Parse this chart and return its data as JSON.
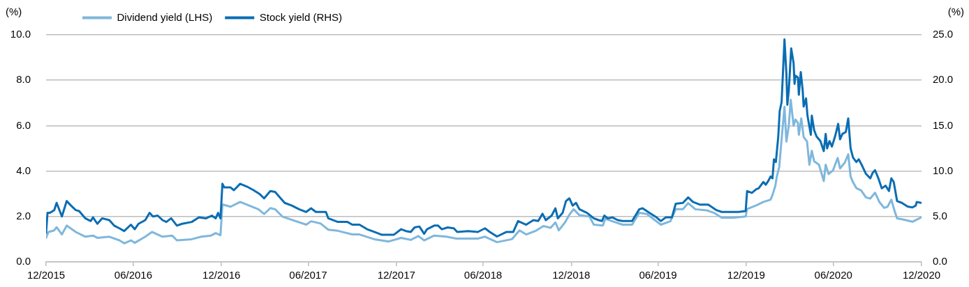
{
  "chart_data": {
    "type": "line",
    "ylabel": "(%)",
    "y2label": "(%)",
    "xlim": [
      "2015-12-31",
      "2020-12-31"
    ],
    "xticks": [
      {
        "value": "2015-12-31",
        "label": "12/2015"
      },
      {
        "value": "2016-06-30",
        "label": "06/2016"
      },
      {
        "value": "2016-12-31",
        "label": "12/2016"
      },
      {
        "value": "2017-06-30",
        "label": "06/2017"
      },
      {
        "value": "2017-12-31",
        "label": "12/2017"
      },
      {
        "value": "2018-06-30",
        "label": "06/2018"
      },
      {
        "value": "2018-12-31",
        "label": "12/2018"
      },
      {
        "value": "2019-06-30",
        "label": "06/2019"
      },
      {
        "value": "2019-12-31",
        "label": "12/2019"
      },
      {
        "value": "2020-06-30",
        "label": "06/2020"
      },
      {
        "value": "2020-12-31",
        "label": "12/2020"
      }
    ],
    "ylim": [
      0,
      10
    ],
    "yticks": [
      {
        "value": 0,
        "label": "0.0"
      },
      {
        "value": 2,
        "label": "2.0"
      },
      {
        "value": 4,
        "label": "4.0"
      },
      {
        "value": 6,
        "label": "6.0"
      },
      {
        "value": 8,
        "label": "8.0"
      },
      {
        "value": 10,
        "label": "10.0"
      }
    ],
    "y2lim": [
      0,
      25
    ],
    "y2ticks": [
      {
        "value": 0,
        "label": "0.0"
      },
      {
        "value": 5,
        "label": "5.0"
      },
      {
        "value": 10,
        "label": "10.0"
      },
      {
        "value": 15,
        "label": "15.0"
      },
      {
        "value": 20,
        "label": "20.0"
      },
      {
        "value": 25,
        "label": "25.0"
      }
    ],
    "grid": "y",
    "legend": "top left",
    "line_style": "solid",
    "series": [
      {
        "name": "Dividend yield (LHS)",
        "color": "#7fb7dc",
        "x": [
          "2015-12-31",
          "2016-01-05",
          "2016-01-17",
          "2016-01-22",
          "2016-02-02",
          "2016-02-12",
          "2016-03-02",
          "2016-03-22",
          "2016-04-07",
          "2016-04-16",
          "2016-05-11",
          "2016-06-01",
          "2016-06-11",
          "2016-06-25",
          "2016-07-03",
          "2016-07-25",
          "2016-08-08",
          "2016-08-30",
          "2016-09-19",
          "2016-09-29",
          "2016-10-30",
          "2016-11-19",
          "2016-12-09",
          "2016-12-19",
          "2016-12-29",
          "2017-01-02",
          "2017-01-19",
          "2017-02-08",
          "2017-02-27",
          "2017-03-18",
          "2017-03-30",
          "2017-04-12",
          "2017-04-22",
          "2017-05-07",
          "2017-05-27",
          "2017-06-26",
          "2017-07-06",
          "2017-07-26",
          "2017-08-11",
          "2017-08-31",
          "2017-09-30",
          "2017-10-15",
          "2017-11-15",
          "2017-12-15",
          "2018-01-10",
          "2018-01-30",
          "2018-02-15",
          "2018-02-27",
          "2018-03-20",
          "2018-04-15",
          "2018-05-05",
          "2018-06-19",
          "2018-07-04",
          "2018-07-29",
          "2018-08-29",
          "2018-09-14",
          "2018-09-28",
          "2018-10-18",
          "2018-11-03",
          "2018-11-18",
          "2018-11-28",
          "2018-12-05",
          "2018-12-18",
          "2018-12-28",
          "2019-01-05",
          "2019-01-17",
          "2019-02-07",
          "2019-02-16",
          "2019-03-07",
          "2019-03-12",
          "2019-03-27",
          "2019-04-17",
          "2019-05-07",
          "2019-05-22",
          "2019-06-07",
          "2019-07-06",
          "2019-07-26",
          "2019-08-06",
          "2019-08-21",
          "2019-09-01",
          "2019-09-16",
          "2019-10-10",
          "2019-10-25",
          "2019-11-10",
          "2019-12-05",
          "2019-12-30",
          "2020-01-02",
          "2020-01-21",
          "2020-02-05",
          "2020-02-20",
          "2020-02-24",
          "2020-03-01",
          "2020-03-04",
          "2020-03-09",
          "2020-03-14",
          "2020-03-20",
          "2020-03-24",
          "2020-03-29",
          "2020-04-02",
          "2020-04-08",
          "2020-04-12",
          "2020-04-17",
          "2020-04-19",
          "2020-04-24",
          "2020-04-29",
          "2020-05-06",
          "2020-05-11",
          "2020-05-16",
          "2020-05-21",
          "2020-05-31",
          "2020-06-10",
          "2020-06-14",
          "2020-06-20",
          "2020-06-29",
          "2020-07-09",
          "2020-07-14",
          "2020-07-24",
          "2020-07-31",
          "2020-08-05",
          "2020-08-10",
          "2020-08-17",
          "2020-08-27",
          "2020-09-06",
          "2020-09-15",
          "2020-09-25",
          "2020-10-04",
          "2020-10-14",
          "2020-10-21",
          "2020-10-29",
          "2020-11-05",
          "2020-11-10",
          "2020-11-22",
          "2020-12-12",
          "2020-12-31"
        ],
        "values": [
          1.06,
          1.32,
          1.39,
          1.53,
          1.21,
          1.6,
          1.32,
          1.11,
          1.16,
          1.06,
          1.11,
          0.95,
          0.82,
          0.95,
          0.84,
          1.11,
          1.32,
          1.11,
          1.16,
          0.95,
          1.0,
          1.11,
          1.16,
          1.27,
          1.18,
          2.53,
          2.43,
          2.64,
          2.48,
          2.32,
          2.11,
          2.37,
          2.32,
          2.0,
          1.85,
          1.64,
          1.79,
          1.69,
          1.42,
          1.37,
          1.21,
          1.21,
          1.0,
          0.9,
          1.06,
          0.97,
          1.14,
          0.95,
          1.16,
          1.11,
          1.03,
          1.03,
          1.11,
          0.87,
          1.0,
          1.39,
          1.21,
          1.37,
          1.58,
          1.5,
          1.74,
          1.39,
          1.74,
          2.11,
          2.32,
          2.06,
          2.0,
          1.64,
          1.6,
          1.9,
          1.79,
          1.64,
          1.64,
          2.16,
          2.11,
          1.64,
          1.79,
          2.32,
          2.32,
          2.59,
          2.32,
          2.27,
          2.16,
          1.95,
          1.95,
          2.0,
          2.33,
          2.49,
          2.64,
          2.74,
          2.95,
          3.36,
          3.76,
          4.17,
          5.4,
          6.83,
          5.3,
          6.0,
          7.14,
          6.0,
          6.27,
          6.12,
          5.6,
          6.32,
          5.5,
          5.3,
          4.28,
          4.89,
          4.43,
          4.28,
          3.56,
          4.28,
          3.87,
          4.02,
          4.58,
          4.12,
          4.38,
          4.74,
          3.76,
          3.51,
          3.25,
          3.15,
          2.84,
          2.79,
          3.05,
          2.64,
          2.38,
          2.43,
          2.74,
          2.23,
          1.92,
          1.87,
          1.77,
          1.97
        ]
      },
      {
        "name": "Stock yield (RHS)",
        "color": "#0a6db3",
        "axis": "y2",
        "x": [
          "2015-12-31",
          "2016-01-03",
          "2016-01-08",
          "2016-01-17",
          "2016-01-22",
          "2016-02-02",
          "2016-02-12",
          "2016-02-21",
          "2016-03-02",
          "2016-03-09",
          "2016-03-22",
          "2016-04-02",
          "2016-04-07",
          "2016-04-16",
          "2016-04-26",
          "2016-05-11",
          "2016-05-21",
          "2016-06-01",
          "2016-06-11",
          "2016-06-25",
          "2016-07-03",
          "2016-07-11",
          "2016-07-25",
          "2016-08-03",
          "2016-08-10",
          "2016-08-20",
          "2016-08-30",
          "2016-09-07",
          "2016-09-17",
          "2016-09-29",
          "2016-10-10",
          "2016-10-30",
          "2016-11-14",
          "2016-11-29",
          "2016-12-11",
          "2016-12-19",
          "2016-12-24",
          "2016-12-29",
          "2017-01-02",
          "2017-01-06",
          "2017-01-19",
          "2017-01-26",
          "2017-02-08",
          "2017-02-22",
          "2017-03-08",
          "2017-03-20",
          "2017-03-30",
          "2017-04-12",
          "2017-04-22",
          "2017-05-02",
          "2017-05-12",
          "2017-05-27",
          "2017-06-11",
          "2017-06-26",
          "2017-07-06",
          "2017-07-16",
          "2017-08-06",
          "2017-08-11",
          "2017-08-31",
          "2017-09-20",
          "2017-09-30",
          "2017-10-15",
          "2017-10-31",
          "2017-11-15",
          "2017-11-30",
          "2017-12-26",
          "2018-01-10",
          "2018-01-20",
          "2018-01-30",
          "2018-02-07",
          "2018-02-17",
          "2018-02-27",
          "2018-03-05",
          "2018-03-20",
          "2018-03-28",
          "2018-04-05",
          "2018-04-17",
          "2018-04-30",
          "2018-05-07",
          "2018-05-30",
          "2018-06-19",
          "2018-07-04",
          "2018-07-14",
          "2018-07-29",
          "2018-08-18",
          "2018-09-01",
          "2018-09-11",
          "2018-09-28",
          "2018-10-13",
          "2018-10-23",
          "2018-11-01",
          "2018-11-08",
          "2018-11-20",
          "2018-11-28",
          "2018-12-03",
          "2018-12-13",
          "2018-12-20",
          "2018-12-27",
          "2019-01-03",
          "2019-01-10",
          "2019-01-17",
          "2019-02-02",
          "2019-02-16",
          "2019-02-26",
          "2019-03-05",
          "2019-03-10",
          "2019-03-17",
          "2019-03-27",
          "2019-04-07",
          "2019-04-17",
          "2019-05-07",
          "2019-05-22",
          "2019-05-29",
          "2019-06-12",
          "2019-06-27",
          "2019-07-06",
          "2019-07-16",
          "2019-07-29",
          "2019-08-06",
          "2019-08-21",
          "2019-09-01",
          "2019-09-11",
          "2019-09-26",
          "2019-10-13",
          "2019-10-30",
          "2019-11-10",
          "2019-11-25",
          "2019-12-15",
          "2019-12-30",
          "2020-01-02",
          "2020-01-12",
          "2020-01-21",
          "2020-01-26",
          "2020-02-05",
          "2020-02-10",
          "2020-02-15",
          "2020-02-20",
          "2020-02-24",
          "2020-02-27",
          "2020-03-02",
          "2020-03-07",
          "2020-03-10",
          "2020-03-14",
          "2020-03-20",
          "2020-03-24",
          "2020-03-26",
          "2020-03-29",
          "2020-04-03",
          "2020-04-08",
          "2020-04-10",
          "2020-04-12",
          "2020-04-17",
          "2020-04-19",
          "2020-04-23",
          "2020-04-27",
          "2020-04-29",
          "2020-05-04",
          "2020-05-07",
          "2020-05-14",
          "2020-05-16",
          "2020-05-21",
          "2020-05-26",
          "2020-06-03",
          "2020-06-10",
          "2020-06-14",
          "2020-06-17",
          "2020-06-22",
          "2020-06-27",
          "2020-07-04",
          "2020-07-10",
          "2020-07-14",
          "2020-07-19",
          "2020-07-26",
          "2020-07-31",
          "2020-08-05",
          "2020-08-10",
          "2020-08-17",
          "2020-08-22",
          "2020-08-29",
          "2020-09-06",
          "2020-09-15",
          "2020-09-20",
          "2020-09-25",
          "2020-10-02",
          "2020-10-09",
          "2020-10-17",
          "2020-10-24",
          "2020-10-29",
          "2020-11-03",
          "2020-11-10",
          "2020-11-20",
          "2020-12-02",
          "2020-12-12",
          "2020-12-19",
          "2020-12-21",
          "2020-12-31"
        ],
        "values": [
          3.2,
          5.4,
          5.4,
          5.7,
          6.5,
          5.0,
          6.7,
          6.2,
          5.7,
          5.6,
          4.8,
          4.5,
          4.9,
          4.2,
          4.8,
          4.6,
          4.0,
          3.7,
          3.4,
          4.1,
          3.6,
          4.2,
          4.6,
          5.4,
          5.0,
          5.1,
          4.6,
          4.4,
          4.8,
          4.0,
          4.2,
          4.4,
          4.9,
          4.8,
          5.1,
          4.8,
          5.4,
          4.8,
          8.6,
          8.2,
          8.2,
          7.9,
          8.6,
          8.3,
          7.9,
          7.5,
          7.0,
          7.8,
          7.7,
          7.1,
          6.5,
          6.2,
          5.8,
          5.5,
          5.9,
          5.5,
          5.5,
          4.8,
          4.4,
          4.4,
          4.1,
          4.1,
          3.6,
          3.3,
          3.0,
          3.0,
          3.6,
          3.4,
          3.3,
          3.8,
          3.9,
          3.1,
          3.6,
          4.0,
          4.0,
          3.6,
          3.8,
          3.7,
          3.3,
          3.4,
          3.3,
          3.7,
          3.3,
          2.8,
          3.3,
          3.3,
          4.5,
          4.1,
          4.6,
          4.5,
          5.3,
          4.6,
          5.1,
          5.9,
          4.8,
          5.4,
          6.7,
          7.0,
          6.2,
          6.5,
          5.8,
          5.4,
          4.8,
          4.6,
          4.5,
          5.1,
          4.8,
          4.9,
          4.6,
          4.5,
          4.5,
          5.8,
          5.9,
          5.4,
          4.9,
          4.5,
          4.9,
          4.9,
          6.4,
          6.5,
          7.1,
          6.6,
          6.3,
          6.3,
          5.7,
          5.5,
          5.5,
          5.5,
          5.6,
          7.8,
          7.6,
          8.0,
          8.1,
          8.8,
          8.5,
          8.9,
          9.4,
          9.2,
          11.3,
          11.0,
          13.8,
          16.6,
          17.6,
          24.5,
          20.7,
          17.3,
          18.9,
          23.5,
          21.9,
          19.6,
          20.5,
          20.3,
          18.4,
          20.9,
          18.9,
          17.1,
          18.0,
          16.1,
          14.0,
          16.1,
          14.5,
          13.8,
          13.3,
          12.2,
          14.1,
          12.5,
          13.3,
          12.7,
          13.9,
          15.2,
          13.5,
          14.1,
          14.3,
          15.8,
          12.5,
          11.5,
          11.0,
          11.3,
          10.6,
          9.7,
          9.2,
          9.8,
          10.1,
          9.2,
          8.1,
          8.4,
          7.8,
          9.2,
          8.8,
          6.7,
          6.5,
          6.1,
          6.0,
          6.2,
          6.6,
          6.5
        ]
      }
    ]
  }
}
